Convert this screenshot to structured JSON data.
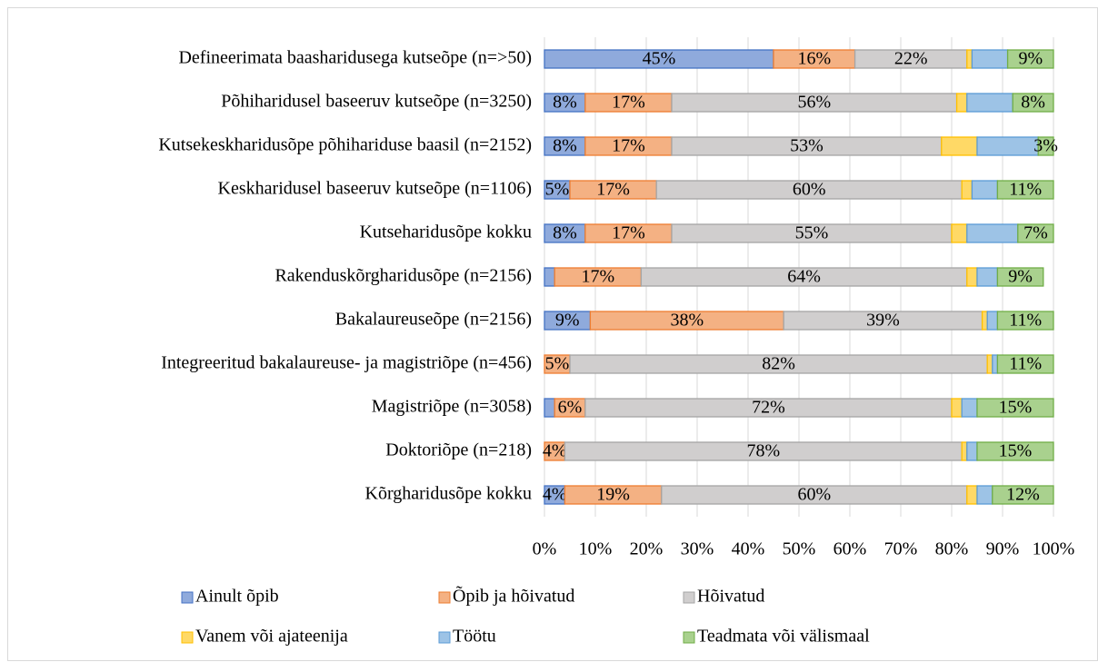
{
  "chart_data": {
    "type": "stacked-bar-horizontal",
    "categories": [
      "Defineerimata baasharidusega kutseõpe (n=>50)",
      "Põhiharidusel baseeruv kutseõpe  (n=3250)",
      "Kutsekeskharidusõpe põhihariduse baasil (n=2152)",
      "Keskharidusel baseeruv kutseõpe (n=1106)",
      "Kutseharidusõpe kokku",
      "Rakenduskõrgharidusõpe (n=2156)",
      "Bakalaureuseõpe (n=2156)",
      "Integreeritud bakalaureuse- ja magistriõpe (n=456)",
      "Magistriõpe (n=3058)",
      "Doktoriõpe (n=218)",
      "Kõrgharidusõpe kokku"
    ],
    "series": [
      {
        "name": "Ainult õpib",
        "color": "#8faadc",
        "edge": "#4472c4",
        "values": [
          45,
          8,
          8,
          5,
          8,
          2,
          9,
          0,
          2,
          0,
          4
        ],
        "value_labels": [
          "45%",
          "8%",
          "8%",
          "5%",
          "8%",
          null,
          "9%",
          null,
          null,
          null,
          "4%"
        ]
      },
      {
        "name": "Õpib ja hõivatud",
        "color": "#f4b183",
        "edge": "#ed7d31",
        "values": [
          16,
          17,
          17,
          17,
          17,
          17,
          38,
          5,
          6,
          4,
          19
        ],
        "value_labels": [
          "16%",
          "17%",
          "17%",
          "17%",
          "17%",
          "17%",
          "38%",
          "5%",
          "6%",
          "4%",
          "19%"
        ]
      },
      {
        "name": "Hõivatud",
        "color": "#d0cece",
        "edge": "#a5a5a5",
        "values": [
          22,
          56,
          53,
          60,
          55,
          64,
          39,
          82,
          72,
          78,
          60
        ],
        "value_labels": [
          "22%",
          "56%",
          "53%",
          "60%",
          "55%",
          "64%",
          "39%",
          "82%",
          "72%",
          "78%",
          "60%"
        ]
      },
      {
        "name": "Vanem või ajateenija",
        "color": "#ffd966",
        "edge": "#ffc000",
        "values": [
          1,
          2,
          7,
          2,
          3,
          2,
          1,
          1,
          2,
          1,
          2
        ],
        "value_labels": [
          null,
          null,
          null,
          null,
          null,
          null,
          null,
          null,
          null,
          null,
          null
        ]
      },
      {
        "name": "Töötu",
        "color": "#9dc3e6",
        "edge": "#5b9bd5",
        "values": [
          7,
          9,
          12,
          5,
          10,
          4,
          2,
          1,
          3,
          2,
          3
        ],
        "value_labels": [
          null,
          null,
          null,
          null,
          null,
          null,
          null,
          null,
          null,
          null,
          null
        ]
      },
      {
        "name": "Teadmata või välismaal",
        "color": "#a9d18e",
        "edge": "#70ad47",
        "values": [
          9,
          8,
          3,
          11,
          7,
          9,
          11,
          11,
          15,
          15,
          12
        ],
        "value_labels": [
          "9%",
          "8%",
          "3%",
          "11%",
          "7%",
          "9%",
          "11%",
          "11%",
          "15%",
          "15%",
          "12%"
        ]
      }
    ],
    "xlim": [
      0,
      100
    ],
    "xticks": [
      {
        "value": 0,
        "label": "0%"
      },
      {
        "value": 10,
        "label": "10%"
      },
      {
        "value": 20,
        "label": "20%"
      },
      {
        "value": 30,
        "label": "30%"
      },
      {
        "value": 40,
        "label": "40%"
      },
      {
        "value": 50,
        "label": "50%"
      },
      {
        "value": 60,
        "label": "60%"
      },
      {
        "value": 70,
        "label": "70%"
      },
      {
        "value": 80,
        "label": "80%"
      },
      {
        "value": 90,
        "label": "90%"
      },
      {
        "value": 100,
        "label": "100%"
      }
    ],
    "grid": true,
    "legend": "bottom"
  }
}
